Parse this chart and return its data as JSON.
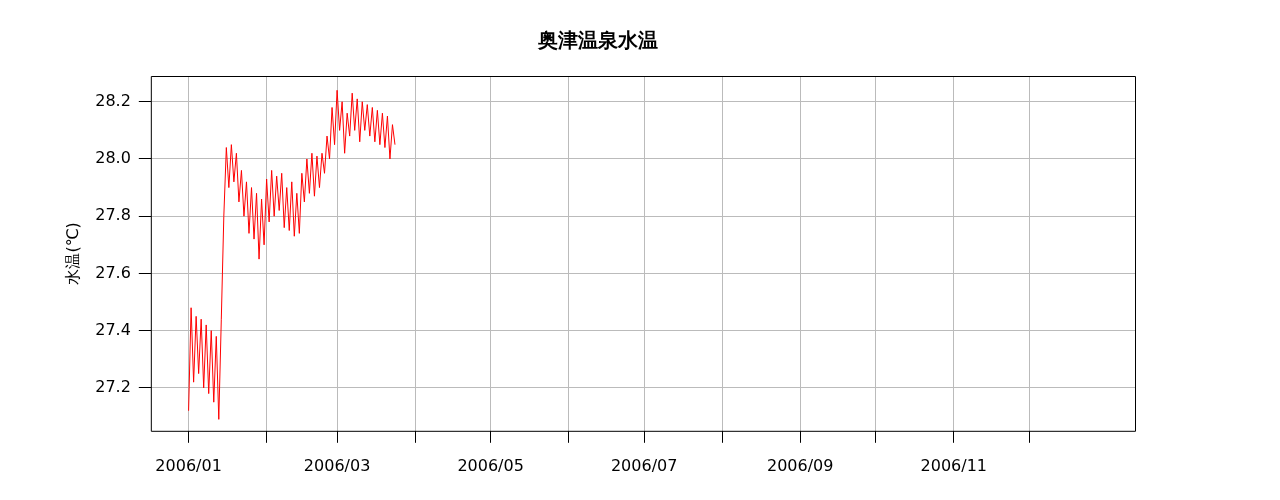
{
  "chart_data": {
    "type": "line",
    "title": "奥津温泉水温",
    "ylabel": "水温(℃)",
    "x": [
      "2006-01-01",
      "2006-01-02",
      "2006-01-03",
      "2006-01-04",
      "2006-01-05",
      "2006-01-06",
      "2006-01-07",
      "2006-01-08",
      "2006-01-09",
      "2006-01-10",
      "2006-01-11",
      "2006-01-12",
      "2006-01-13",
      "2006-01-14",
      "2006-01-15",
      "2006-01-16",
      "2006-01-17",
      "2006-01-18",
      "2006-01-19",
      "2006-01-20",
      "2006-01-21",
      "2006-01-22",
      "2006-01-23",
      "2006-01-24",
      "2006-01-25",
      "2006-01-26",
      "2006-01-27",
      "2006-01-28",
      "2006-01-29",
      "2006-01-30",
      "2006-01-31",
      "2006-02-01",
      "2006-02-02",
      "2006-02-03",
      "2006-02-04",
      "2006-02-05",
      "2006-02-06",
      "2006-02-07",
      "2006-02-08",
      "2006-02-09",
      "2006-02-10",
      "2006-02-11",
      "2006-02-12",
      "2006-02-13",
      "2006-02-14",
      "2006-02-15",
      "2006-02-16",
      "2006-02-17",
      "2006-02-18",
      "2006-02-19",
      "2006-02-20",
      "2006-02-21",
      "2006-02-22",
      "2006-02-23",
      "2006-02-24",
      "2006-02-25",
      "2006-02-26",
      "2006-02-27",
      "2006-02-28",
      "2006-03-01",
      "2006-03-02",
      "2006-03-03",
      "2006-03-04",
      "2006-03-05",
      "2006-03-06",
      "2006-03-07",
      "2006-03-08",
      "2006-03-09",
      "2006-03-10",
      "2006-03-11",
      "2006-03-12",
      "2006-03-13",
      "2006-03-14",
      "2006-03-15",
      "2006-03-16",
      "2006-03-17",
      "2006-03-18",
      "2006-03-19",
      "2006-03-20",
      "2006-03-21",
      "2006-03-22",
      "2006-03-23",
      "2006-03-24"
    ],
    "series": [
      {
        "color": "#ff0000",
        "values": [
          27.12,
          27.48,
          27.22,
          27.45,
          27.25,
          27.44,
          27.2,
          27.42,
          27.18,
          27.4,
          27.15,
          27.38,
          27.09,
          27.44,
          27.8,
          28.04,
          27.9,
          28.05,
          27.92,
          28.02,
          27.85,
          27.96,
          27.8,
          27.92,
          27.74,
          27.9,
          27.72,
          27.88,
          27.65,
          27.86,
          27.7,
          27.93,
          27.78,
          27.96,
          27.8,
          27.94,
          27.82,
          27.95,
          27.76,
          27.9,
          27.75,
          27.92,
          27.73,
          27.88,
          27.74,
          27.95,
          27.85,
          28.0,
          27.88,
          28.02,
          27.87,
          28.01,
          27.9,
          28.02,
          27.95,
          28.08,
          28.0,
          28.18,
          28.05,
          28.24,
          28.1,
          28.2,
          28.02,
          28.16,
          28.08,
          28.23,
          28.1,
          28.21,
          28.06,
          28.2,
          28.1,
          28.19,
          28.08,
          28.18,
          28.06,
          28.17,
          28.05,
          28.16,
          28.04,
          28.15,
          28.0,
          28.12,
          28.05
        ]
      }
    ],
    "xlim": [
      "2005-12-17",
      "2007-01-12"
    ],
    "xticks": [
      {
        "value": "2006-01",
        "label": "2006/01"
      },
      {
        "value": "2006-02",
        "label": null
      },
      {
        "value": "2006-03",
        "label": "2006/03"
      },
      {
        "value": "2006-04",
        "label": null
      },
      {
        "value": "2006-05",
        "label": "2006/05"
      },
      {
        "value": "2006-06",
        "label": null
      },
      {
        "value": "2006-07",
        "label": "2006/07"
      },
      {
        "value": "2006-08",
        "label": null
      },
      {
        "value": "2006-09",
        "label": "2006/09"
      },
      {
        "value": "2006-10",
        "label": null
      },
      {
        "value": "2006-11",
        "label": "2006/11"
      },
      {
        "value": "2006-12",
        "label": null
      }
    ],
    "ylim": [
      27.05,
      28.29
    ],
    "yticks": [
      27.2,
      27.4,
      27.6,
      27.8,
      {
        "value": 28,
        "label": "28.0"
      },
      28.2
    ],
    "grid": true
  }
}
